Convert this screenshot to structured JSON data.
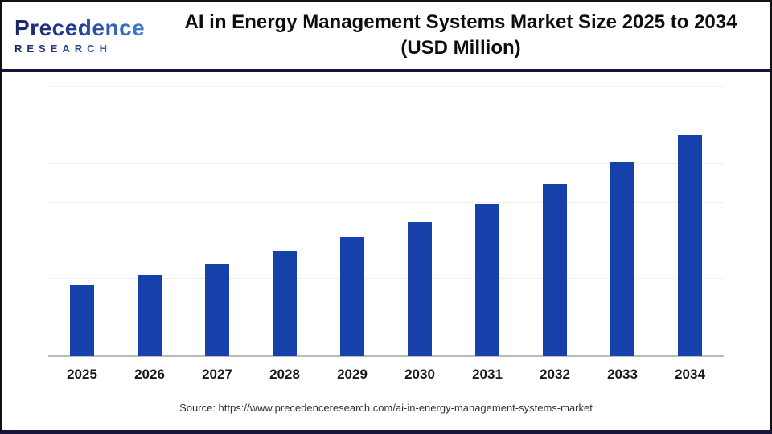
{
  "logo": {
    "name": "Precedence",
    "subtitle": "RESEARCH"
  },
  "header": {
    "title_line1": "AI in Energy Management Systems Market Size 2025 to 2034",
    "title_line2": "(USD Million)"
  },
  "chart_data": {
    "type": "bar",
    "title": "AI in Energy Management Systems Market Size 2025 to 2034 (USD Million)",
    "categories": [
      "2025",
      "2026",
      "2027",
      "2028",
      "2029",
      "2030",
      "2031",
      "2032",
      "2033",
      "2034"
    ],
    "values": [
      26.6,
      30.1,
      34.0,
      39.1,
      44.2,
      49.9,
      56.4,
      63.9,
      72.2,
      82.1
    ],
    "values_unit": "percent of plot height; y-axis shows no tick labels, values estimated from bar heights (approx. 13% year-over-year growth)",
    "xlabel": "",
    "ylabel": "",
    "y_axis_labels_visible": false,
    "gridline_count": 7,
    "grid": "horizontal",
    "legend": "none",
    "bar_color": "#1640aa"
  },
  "footer": {
    "source": "Source: https://www.precedenceresearch.com/ai-in-energy-management-systems-market"
  },
  "colors": {
    "bar": "#1640aa",
    "gridline": "#f0f0f0",
    "axis_line": "#bbbbbb",
    "separator": "#15153d",
    "outer_border": "#111111",
    "logo_navy": "#1b2565",
    "logo_blue": "#4a8fe2",
    "title_text": "#0d0d0d"
  }
}
